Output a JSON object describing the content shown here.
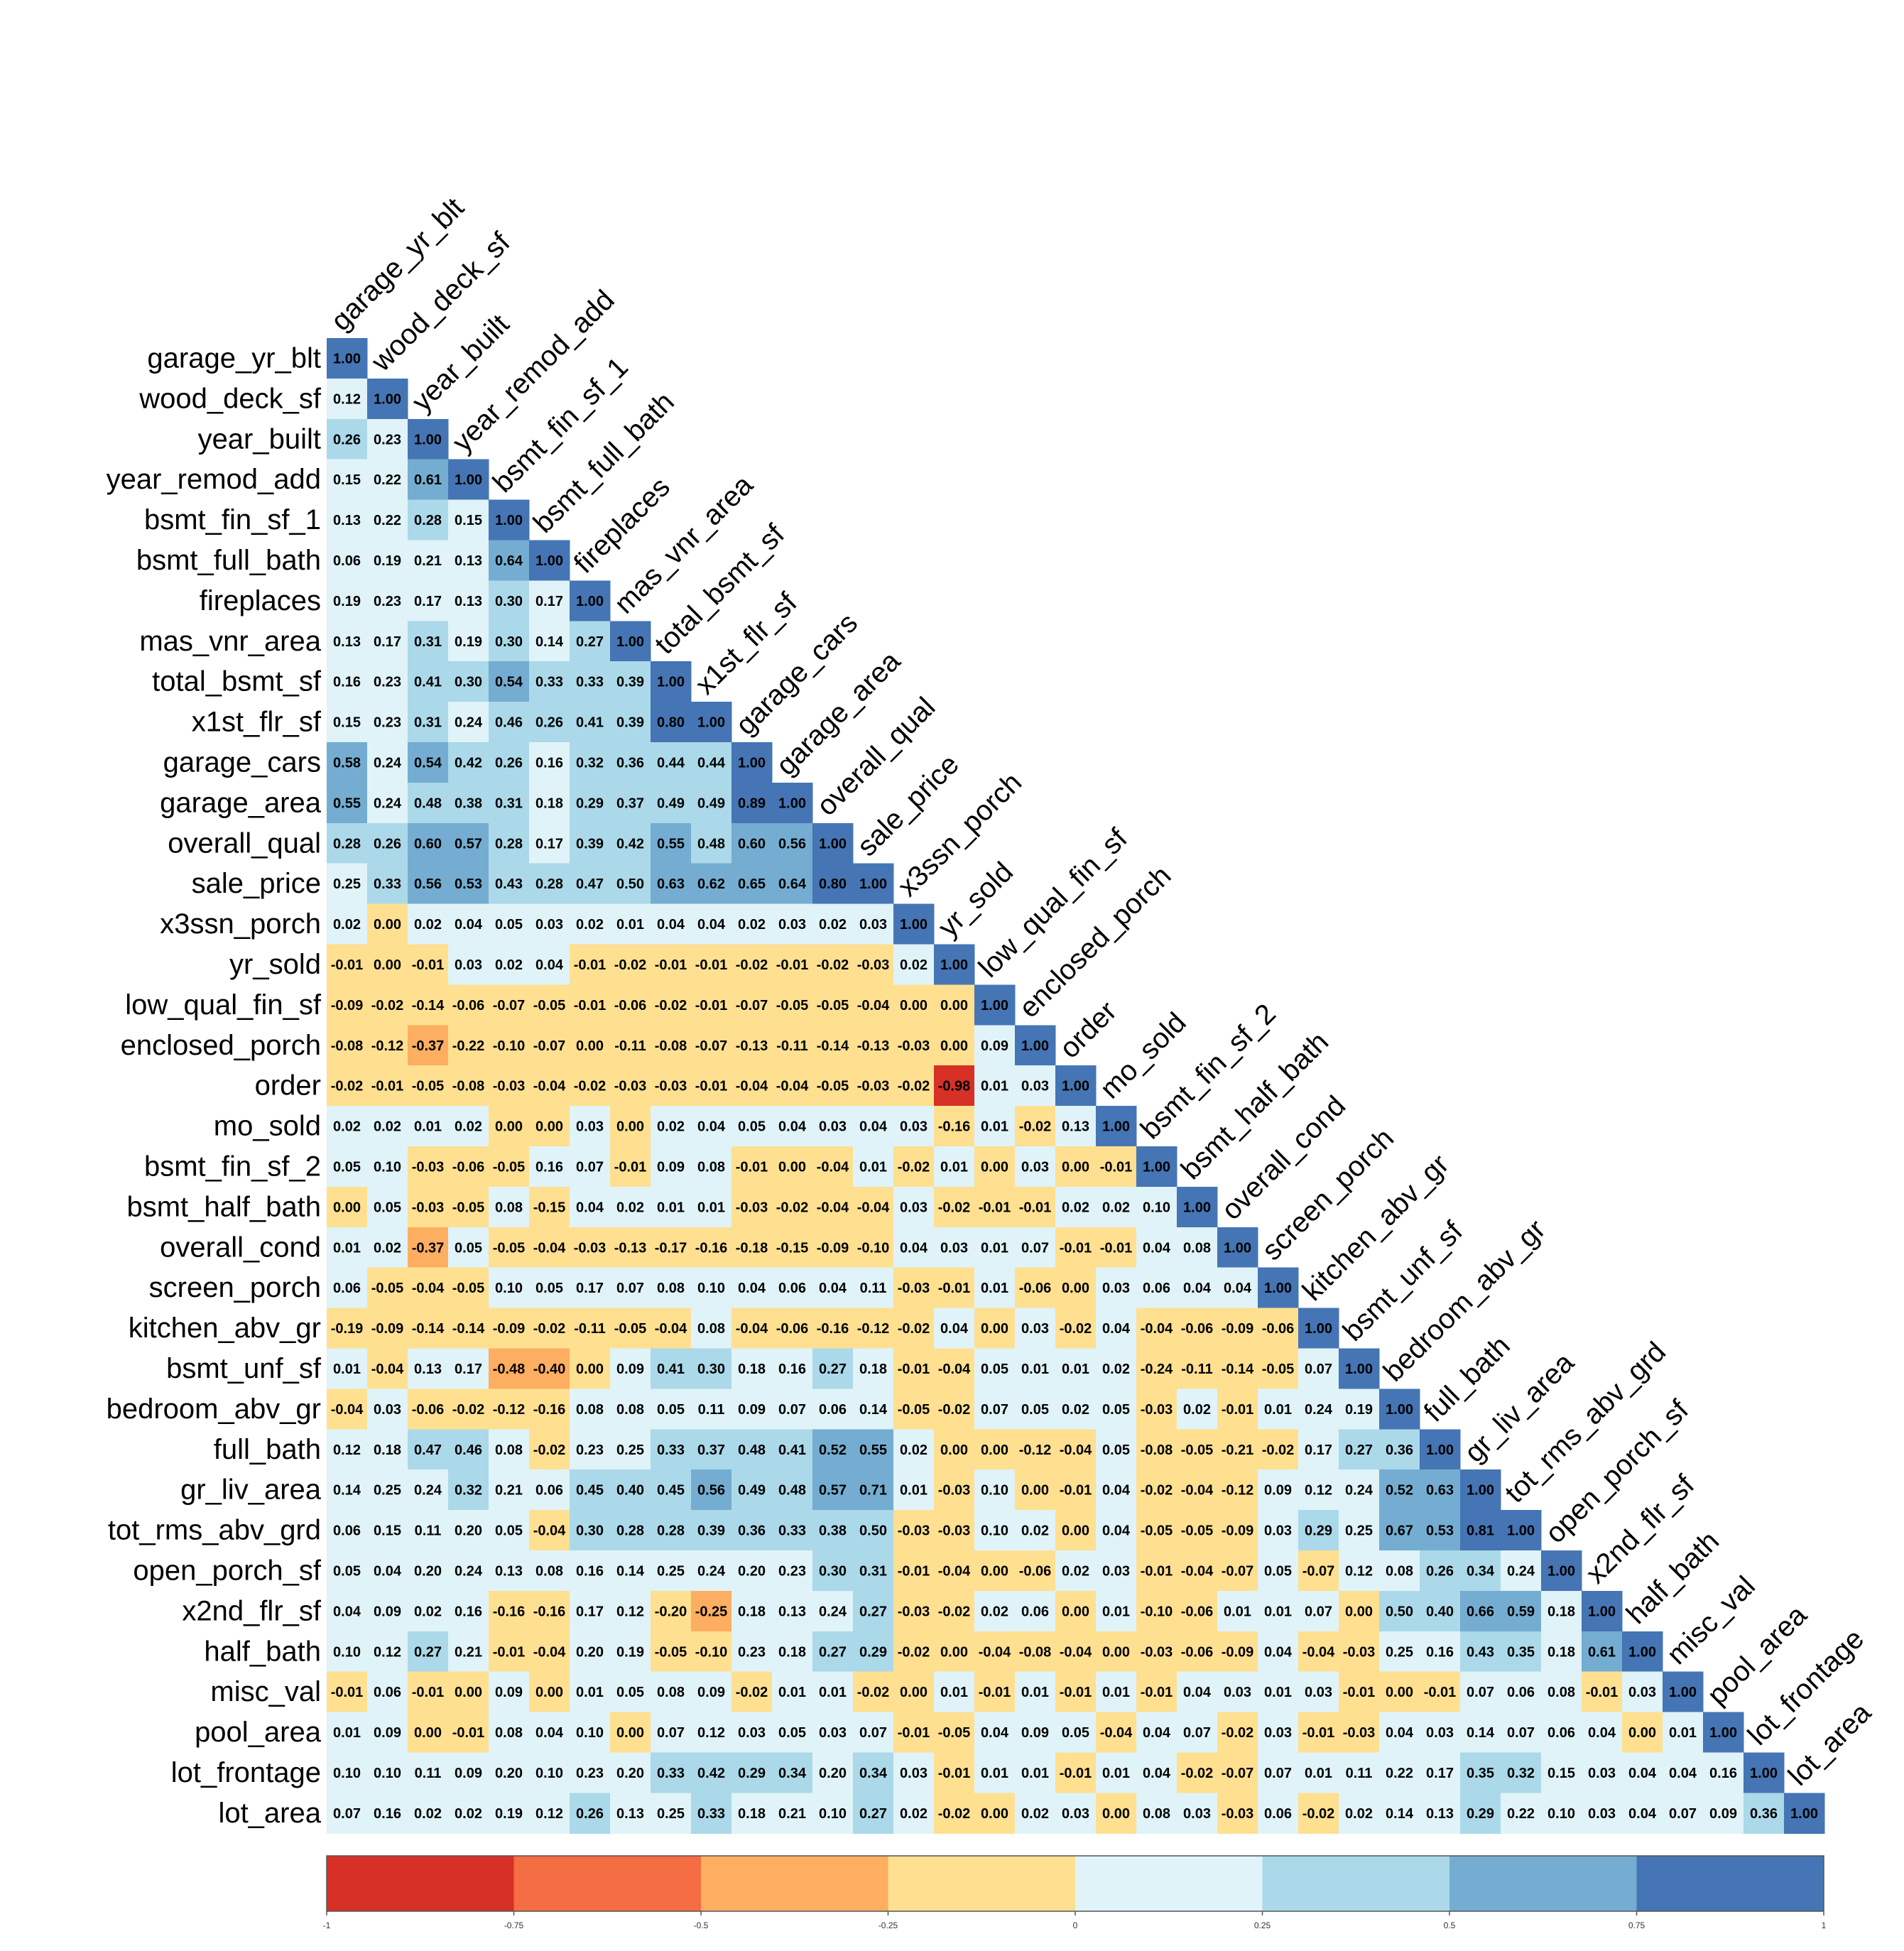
{
  "chart_data": {
    "type": "heatmap",
    "variables": [
      "garage_yr_blt",
      "wood_deck_sf",
      "year_built",
      "year_remod_add",
      "bsmt_fin_sf_1",
      "bsmt_full_bath",
      "fireplaces",
      "mas_vnr_area",
      "total_bsmt_sf",
      "x1st_flr_sf",
      "garage_cars",
      "garage_area",
      "overall_qual",
      "sale_price",
      "x3ssn_porch",
      "yr_sold",
      "low_qual_fin_sf",
      "enclosed_porch",
      "order",
      "mo_sold",
      "bsmt_fin_sf_2",
      "bsmt_half_bath",
      "overall_cond",
      "screen_porch",
      "kitchen_abv_gr",
      "bsmt_unf_sf",
      "bedroom_abv_gr",
      "full_bath",
      "gr_liv_area",
      "tot_rms_abv_grd",
      "open_porch_sf",
      "x2nd_flr_sf",
      "half_bath",
      "misc_val",
      "pool_area",
      "lot_frontage",
      "lot_area"
    ],
    "matrix": [
      [
        "1.00"
      ],
      [
        "0.12",
        "1.00"
      ],
      [
        "0.26",
        "0.23",
        "1.00"
      ],
      [
        "0.15",
        "0.22",
        "0.61",
        "1.00"
      ],
      [
        "0.13",
        "0.22",
        "0.28",
        "0.15",
        "1.00"
      ],
      [
        "0.06",
        "0.19",
        "0.21",
        "0.13",
        "0.64",
        "1.00"
      ],
      [
        "0.19",
        "0.23",
        "0.17",
        "0.13",
        "0.30",
        "0.17",
        "1.00"
      ],
      [
        "0.13",
        "0.17",
        "0.31",
        "0.19",
        "0.30",
        "0.14",
        "0.27",
        "1.00"
      ],
      [
        "0.16",
        "0.23",
        "0.41",
        "0.30",
        "0.54",
        "0.33",
        "0.33",
        "0.39",
        "1.00"
      ],
      [
        "0.15",
        "0.23",
        "0.31",
        "0.24",
        "0.46",
        "0.26",
        "0.41",
        "0.39",
        "0.80",
        "1.00"
      ],
      [
        "0.58",
        "0.24",
        "0.54",
        "0.42",
        "0.26",
        "0.16",
        "0.32",
        "0.36",
        "0.44",
        "0.44",
        "1.00"
      ],
      [
        "0.55",
        "0.24",
        "0.48",
        "0.38",
        "0.31",
        "0.18",
        "0.29",
        "0.37",
        "0.49",
        "0.49",
        "0.89",
        "1.00"
      ],
      [
        "0.28",
        "0.26",
        "0.60",
        "0.57",
        "0.28",
        "0.17",
        "0.39",
        "0.42",
        "0.55",
        "0.48",
        "0.60",
        "0.56",
        "1.00"
      ],
      [
        "0.25",
        "0.33",
        "0.56",
        "0.53",
        "0.43",
        "0.28",
        "0.47",
        "0.50",
        "0.63",
        "0.62",
        "0.65",
        "0.64",
        "0.80",
        "1.00"
      ],
      [
        "0.02",
        "0.00",
        "0.02",
        "0.04",
        "0.05",
        "0.03",
        "0.02",
        "0.01",
        "0.04",
        "0.04",
        "0.02",
        "0.03",
        "0.02",
        "0.03",
        "1.00"
      ],
      [
        "-0.01",
        "0.00",
        "-0.01",
        "0.03",
        "0.02",
        "0.04",
        "-0.01",
        "-0.02",
        "-0.01",
        "-0.01",
        "-0.02",
        "-0.01",
        "-0.02",
        "-0.03",
        "0.02",
        "1.00"
      ],
      [
        "-0.09",
        "-0.02",
        "-0.14",
        "-0.06",
        "-0.07",
        "-0.05",
        "-0.01",
        "-0.06",
        "-0.02",
        "-0.01",
        "-0.07",
        "-0.05",
        "-0.05",
        "-0.04",
        "0.00",
        "0.00",
        "1.00"
      ],
      [
        "-0.08",
        "-0.12",
        "-0.37",
        "-0.22",
        "-0.10",
        "-0.07",
        "0.00",
        "-0.11",
        "-0.08",
        "-0.07",
        "-0.13",
        "-0.11",
        "-0.14",
        "-0.13",
        "-0.03",
        "0.00",
        "0.09",
        "1.00"
      ],
      [
        "-0.02",
        "-0.01",
        "-0.05",
        "-0.08",
        "-0.03",
        "-0.04",
        "-0.02",
        "-0.03",
        "-0.03",
        "-0.01",
        "-0.04",
        "-0.04",
        "-0.05",
        "-0.03",
        "-0.02",
        "-0.98",
        "0.01",
        "0.03",
        "1.00"
      ],
      [
        "0.02",
        "0.02",
        "0.01",
        "0.02",
        "0.00",
        "0.00",
        "0.03",
        "0.00",
        "0.02",
        "0.04",
        "0.05",
        "0.04",
        "0.03",
        "0.04",
        "0.03",
        "-0.16",
        "0.01",
        "-0.02",
        "0.13",
        "1.00"
      ],
      [
        "0.05",
        "0.10",
        "-0.03",
        "-0.06",
        "-0.05",
        "0.16",
        "0.07",
        "-0.01",
        "0.09",
        "0.08",
        "-0.01",
        "0.00",
        "-0.04",
        "0.01",
        "-0.02",
        "0.01",
        "0.00",
        "0.03",
        "0.00",
        "-0.01",
        "1.00"
      ],
      [
        "0.00",
        "0.05",
        "-0.03",
        "-0.05",
        "0.08",
        "-0.15",
        "0.04",
        "0.02",
        "0.01",
        "0.01",
        "-0.03",
        "-0.02",
        "-0.04",
        "-0.04",
        "0.03",
        "-0.02",
        "-0.01",
        "-0.01",
        "0.02",
        "0.02",
        "0.10",
        "1.00"
      ],
      [
        "0.01",
        "0.02",
        "-0.37",
        "0.05",
        "-0.05",
        "-0.04",
        "-0.03",
        "-0.13",
        "-0.17",
        "-0.16",
        "-0.18",
        "-0.15",
        "-0.09",
        "-0.10",
        "0.04",
        "0.03",
        "0.01",
        "0.07",
        "-0.01",
        "-0.01",
        "0.04",
        "0.08",
        "1.00"
      ],
      [
        "0.06",
        "-0.05",
        "-0.04",
        "-0.05",
        "0.10",
        "0.05",
        "0.17",
        "0.07",
        "0.08",
        "0.10",
        "0.04",
        "0.06",
        "0.04",
        "0.11",
        "-0.03",
        "-0.01",
        "0.01",
        "-0.06",
        "0.00",
        "0.03",
        "0.06",
        "0.04",
        "0.04",
        "1.00"
      ],
      [
        "-0.19",
        "-0.09",
        "-0.14",
        "-0.14",
        "-0.09",
        "-0.02",
        "-0.11",
        "-0.05",
        "-0.04",
        "0.08",
        "-0.04",
        "-0.06",
        "-0.16",
        "-0.12",
        "-0.02",
        "0.04",
        "0.00",
        "0.03",
        "-0.02",
        "0.04",
        "-0.04",
        "-0.06",
        "-0.09",
        "-0.06",
        "1.00"
      ],
      [
        "0.01",
        "-0.04",
        "0.13",
        "0.17",
        "-0.48",
        "-0.40",
        "0.00",
        "0.09",
        "0.41",
        "0.30",
        "0.18",
        "0.16",
        "0.27",
        "0.18",
        "-0.01",
        "-0.04",
        "0.05",
        "0.01",
        "0.01",
        "0.02",
        "-0.24",
        "-0.11",
        "-0.14",
        "-0.05",
        "0.07",
        "1.00"
      ],
      [
        "-0.04",
        "0.03",
        "-0.06",
        "-0.02",
        "-0.12",
        "-0.16",
        "0.08",
        "0.08",
        "0.05",
        "0.11",
        "0.09",
        "0.07",
        "0.06",
        "0.14",
        "-0.05",
        "-0.02",
        "0.07",
        "0.05",
        "0.02",
        "0.05",
        "-0.03",
        "0.02",
        "-0.01",
        "0.01",
        "0.24",
        "0.19",
        "1.00"
      ],
      [
        "0.12",
        "0.18",
        "0.47",
        "0.46",
        "0.08",
        "-0.02",
        "0.23",
        "0.25",
        "0.33",
        "0.37",
        "0.48",
        "0.41",
        "0.52",
        "0.55",
        "0.02",
        "0.00",
        "0.00",
        "-0.12",
        "-0.04",
        "0.05",
        "-0.08",
        "-0.05",
        "-0.21",
        "-0.02",
        "0.17",
        "0.27",
        "0.36",
        "1.00"
      ],
      [
        "0.14",
        "0.25",
        "0.24",
        "0.32",
        "0.21",
        "0.06",
        "0.45",
        "0.40",
        "0.45",
        "0.56",
        "0.49",
        "0.48",
        "0.57",
        "0.71",
        "0.01",
        "-0.03",
        "0.10",
        "0.00",
        "-0.01",
        "0.04",
        "-0.02",
        "-0.04",
        "-0.12",
        "0.09",
        "0.12",
        "0.24",
        "0.52",
        "0.63",
        "1.00"
      ],
      [
        "0.06",
        "0.15",
        "0.11",
        "0.20",
        "0.05",
        "-0.04",
        "0.30",
        "0.28",
        "0.28",
        "0.39",
        "0.36",
        "0.33",
        "0.38",
        "0.50",
        "-0.03",
        "-0.03",
        "0.10",
        "0.02",
        "0.00",
        "0.04",
        "-0.05",
        "-0.05",
        "-0.09",
        "0.03",
        "0.29",
        "0.25",
        "0.67",
        "0.53",
        "0.81",
        "1.00"
      ],
      [
        "0.05",
        "0.04",
        "0.20",
        "0.24",
        "0.13",
        "0.08",
        "0.16",
        "0.14",
        "0.25",
        "0.24",
        "0.20",
        "0.23",
        "0.30",
        "0.31",
        "-0.01",
        "-0.04",
        "0.00",
        "-0.06",
        "0.02",
        "0.03",
        "-0.01",
        "-0.04",
        "-0.07",
        "0.05",
        "-0.07",
        "0.12",
        "0.08",
        "0.26",
        "0.34",
        "0.24",
        "1.00"
      ],
      [
        "0.04",
        "0.09",
        "0.02",
        "0.16",
        "-0.16",
        "-0.16",
        "0.17",
        "0.12",
        "-0.20",
        "-0.25",
        "0.18",
        "0.13",
        "0.24",
        "0.27",
        "-0.03",
        "-0.02",
        "0.02",
        "0.06",
        "0.00",
        "0.01",
        "-0.10",
        "-0.06",
        "0.01",
        "0.01",
        "0.07",
        "0.00",
        "0.50",
        "0.40",
        "0.66",
        "0.59",
        "0.18",
        "1.00"
      ],
      [
        "0.10",
        "0.12",
        "0.27",
        "0.21",
        "-0.01",
        "-0.04",
        "0.20",
        "0.19",
        "-0.05",
        "-0.10",
        "0.23",
        "0.18",
        "0.27",
        "0.29",
        "-0.02",
        "0.00",
        "-0.04",
        "-0.08",
        "-0.04",
        "0.00",
        "-0.03",
        "-0.06",
        "-0.09",
        "0.04",
        "-0.04",
        "-0.03",
        "0.25",
        "0.16",
        "0.43",
        "0.35",
        "0.18",
        "0.61",
        "1.00"
      ],
      [
        "-0.01",
        "0.06",
        "-0.01",
        "0.00",
        "0.09",
        "0.00",
        "0.01",
        "0.05",
        "0.08",
        "0.09",
        "-0.02",
        "0.01",
        "0.01",
        "-0.02",
        "0.00",
        "0.01",
        "-0.01",
        "0.01",
        "-0.01",
        "0.01",
        "-0.01",
        "0.04",
        "0.03",
        "0.01",
        "0.03",
        "-0.01",
        "0.00",
        "-0.01",
        "0.07",
        "0.06",
        "0.08",
        "-0.01",
        "0.03",
        "1.00"
      ],
      [
        "0.01",
        "0.09",
        "0.00",
        "-0.01",
        "0.08",
        "0.04",
        "0.10",
        "0.00",
        "0.07",
        "0.12",
        "0.03",
        "0.05",
        "0.03",
        "0.07",
        "-0.01",
        "-0.05",
        "0.04",
        "0.09",
        "0.05",
        "-0.04",
        "0.04",
        "0.07",
        "-0.02",
        "0.03",
        "-0.01",
        "-0.03",
        "0.04",
        "0.03",
        "0.14",
        "0.07",
        "0.06",
        "0.04",
        "0.00",
        "0.01",
        "1.00"
      ],
      [
        "0.10",
        "0.10",
        "0.11",
        "0.09",
        "0.20",
        "0.10",
        "0.23",
        "0.20",
        "0.33",
        "0.42",
        "0.29",
        "0.34",
        "0.20",
        "0.34",
        "0.03",
        "-0.01",
        "0.01",
        "0.01",
        "-0.01",
        "0.01",
        "0.04",
        "-0.02",
        "-0.07",
        "0.07",
        "0.01",
        "0.11",
        "0.22",
        "0.17",
        "0.35",
        "0.32",
        "0.15",
        "0.03",
        "0.04",
        "0.04",
        "0.16",
        "1.00"
      ],
      [
        "0.07",
        "0.16",
        "0.02",
        "0.02",
        "0.19",
        "0.12",
        "0.26",
        "0.13",
        "0.25",
        "0.33",
        "0.18",
        "0.21",
        "0.10",
        "0.27",
        "0.02",
        "-0.02",
        "0.00",
        "0.02",
        "0.03",
        "0.00",
        "0.08",
        "0.03",
        "-0.03",
        "0.06",
        "-0.02",
        "0.02",
        "0.14",
        "0.13",
        "0.29",
        "0.22",
        "0.10",
        "0.03",
        "0.04",
        "0.07",
        "0.09",
        "0.36",
        "1.00"
      ]
    ],
    "colorscale": {
      "breaks": [
        -1,
        -0.75,
        -0.5,
        -0.25,
        0,
        0.25,
        0.5,
        0.75,
        1
      ],
      "colors": [
        "#D73027",
        "#F46D43",
        "#FDAE61",
        "#FEE090",
        "#E0F3F8",
        "#ABD9E9",
        "#74ADD1",
        "#4575B4"
      ],
      "tick_labels": [
        "-1",
        "-0.75",
        "-0.5",
        "-0.25",
        "0",
        "0.25",
        "0.5",
        "0.75",
        "1"
      ]
    },
    "legend_position": "bottom",
    "grid": false
  }
}
